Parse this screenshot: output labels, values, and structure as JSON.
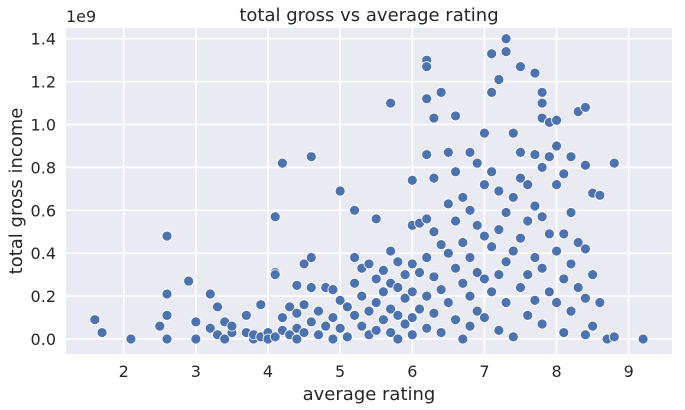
{
  "chart_data": {
    "type": "scatter",
    "title": "total gross vs average rating",
    "xlabel": "average rating",
    "ylabel": "total gross income",
    "y_offset_label": "1e9",
    "xlim": [
      1.2,
      9.6
    ],
    "ylim": [
      -0.07,
      1.45
    ],
    "x_ticks": [
      2,
      3,
      4,
      5,
      6,
      7,
      8,
      9
    ],
    "y_ticks": [
      0.0,
      0.2,
      0.4,
      0.6,
      0.8,
      1.0,
      1.2,
      1.4
    ],
    "x_tick_labels": [
      "2",
      "3",
      "4",
      "5",
      "6",
      "7",
      "8",
      "9"
    ],
    "y_tick_labels": [
      "0.0",
      "0.2",
      "0.4",
      "0.6",
      "0.8",
      "1.0",
      "1.2",
      "1.4"
    ],
    "grid": true,
    "background_color": "#eaeaf2",
    "marker_color": "#4c72b0",
    "y_units": "1e9",
    "points": [
      [
        1.6,
        0.09
      ],
      [
        1.7,
        0.03
      ],
      [
        2.1,
        0.0
      ],
      [
        2.5,
        0.06
      ],
      [
        2.6,
        0.0
      ],
      [
        2.6,
        0.11
      ],
      [
        2.6,
        0.21
      ],
      [
        2.6,
        0.48
      ],
      [
        2.9,
        0.27
      ],
      [
        3.0,
        0.08
      ],
      [
        3.0,
        0.0
      ],
      [
        3.2,
        0.21
      ],
      [
        3.2,
        0.05
      ],
      [
        3.3,
        0.15
      ],
      [
        3.3,
        0.02
      ],
      [
        3.4,
        0.0
      ],
      [
        3.4,
        0.08
      ],
      [
        3.5,
        0.03
      ],
      [
        3.5,
        0.06
      ],
      [
        3.7,
        0.03
      ],
      [
        3.7,
        0.11
      ],
      [
        3.8,
        0.0
      ],
      [
        3.8,
        0.02
      ],
      [
        3.9,
        0.16
      ],
      [
        3.9,
        0.01
      ],
      [
        4.0,
        0.03
      ],
      [
        4.0,
        0.0
      ],
      [
        4.1,
        0.57
      ],
      [
        4.1,
        0.31
      ],
      [
        4.1,
        0.01
      ],
      [
        4.1,
        0.3
      ],
      [
        4.2,
        0.82
      ],
      [
        4.2,
        0.04
      ],
      [
        4.2,
        0.1
      ],
      [
        4.3,
        0.15
      ],
      [
        4.3,
        0.02
      ],
      [
        4.4,
        0.25
      ],
      [
        4.4,
        0.05
      ],
      [
        4.4,
        0.12
      ],
      [
        4.4,
        0.0
      ],
      [
        4.5,
        0.35
      ],
      [
        4.5,
        0.16
      ],
      [
        4.5,
        0.03
      ],
      [
        4.6,
        0.85
      ],
      [
        4.6,
        0.38
      ],
      [
        4.6,
        0.24
      ],
      [
        4.6,
        0.08
      ],
      [
        4.7,
        0.13
      ],
      [
        4.7,
        0.02
      ],
      [
        4.8,
        0.24
      ],
      [
        4.8,
        0.06
      ],
      [
        4.9,
        0.23
      ],
      [
        4.9,
        0.1
      ],
      [
        4.9,
        0.0
      ],
      [
        5.0,
        0.69
      ],
      [
        5.0,
        0.18
      ],
      [
        5.0,
        0.05
      ],
      [
        5.1,
        0.15
      ],
      [
        5.1,
        0.01
      ],
      [
        5.2,
        0.6
      ],
      [
        5.2,
        0.38
      ],
      [
        5.2,
        0.26
      ],
      [
        5.2,
        0.11
      ],
      [
        5.3,
        0.33
      ],
      [
        5.3,
        0.2
      ],
      [
        5.3,
        0.06
      ],
      [
        5.4,
        0.35
      ],
      [
        5.4,
        0.13
      ],
      [
        5.4,
        0.02
      ],
      [
        5.5,
        0.56
      ],
      [
        5.5,
        0.28
      ],
      [
        5.5,
        0.17
      ],
      [
        5.5,
        0.04
      ],
      [
        5.6,
        0.32
      ],
      [
        5.6,
        0.22
      ],
      [
        5.6,
        0.09
      ],
      [
        5.7,
        1.1
      ],
      [
        5.7,
        0.41
      ],
      [
        5.7,
        0.26
      ],
      [
        5.7,
        0.14
      ],
      [
        5.7,
        0.03
      ],
      [
        5.8,
        0.36
      ],
      [
        5.8,
        0.24
      ],
      [
        5.8,
        0.11
      ],
      [
        5.8,
        0.0
      ],
      [
        5.9,
        0.3
      ],
      [
        5.9,
        0.19
      ],
      [
        5.9,
        0.07
      ],
      [
        6.0,
        0.74
      ],
      [
        6.0,
        0.53
      ],
      [
        6.0,
        0.35
      ],
      [
        6.0,
        0.22
      ],
      [
        6.0,
        0.1
      ],
      [
        6.0,
        0.02
      ],
      [
        6.1,
        0.54
      ],
      [
        6.1,
        0.31
      ],
      [
        6.1,
        0.14
      ],
      [
        6.2,
        1.3
      ],
      [
        6.2,
        1.27
      ],
      [
        6.2,
        1.12
      ],
      [
        6.2,
        0.86
      ],
      [
        6.2,
        0.56
      ],
      [
        6.2,
        0.38
      ],
      [
        6.2,
        0.2
      ],
      [
        6.2,
        0.05
      ],
      [
        6.3,
        1.03
      ],
      [
        6.3,
        0.75
      ],
      [
        6.3,
        0.5
      ],
      [
        6.3,
        0.29
      ],
      [
        6.3,
        0.12
      ],
      [
        6.4,
        1.15
      ],
      [
        6.4,
        0.44
      ],
      [
        6.4,
        0.23
      ],
      [
        6.4,
        0.03
      ],
      [
        6.5,
        0.87
      ],
      [
        6.5,
        0.63
      ],
      [
        6.5,
        0.4
      ],
      [
        6.5,
        0.17
      ],
      [
        6.6,
        1.04
      ],
      [
        6.6,
        0.78
      ],
      [
        6.6,
        0.55
      ],
      [
        6.6,
        0.33
      ],
      [
        6.6,
        0.09
      ],
      [
        6.7,
        0.66
      ],
      [
        6.7,
        0.45
      ],
      [
        6.7,
        0.26
      ],
      [
        6.7,
        0.0
      ],
      [
        6.8,
        0.87
      ],
      [
        6.8,
        0.6
      ],
      [
        6.8,
        0.38
      ],
      [
        6.8,
        0.2
      ],
      [
        6.8,
        0.06
      ],
      [
        6.9,
        0.82
      ],
      [
        6.9,
        0.53
      ],
      [
        6.9,
        0.31
      ],
      [
        6.9,
        0.13
      ],
      [
        7.0,
        0.96
      ],
      [
        7.0,
        0.72
      ],
      [
        7.0,
        0.48
      ],
      [
        7.0,
        0.28
      ],
      [
        7.0,
        0.1
      ],
      [
        7.1,
        1.33
      ],
      [
        7.1,
        1.15
      ],
      [
        7.1,
        0.78
      ],
      [
        7.1,
        0.43
      ],
      [
        7.1,
        0.22
      ],
      [
        7.2,
        1.21
      ],
      [
        7.2,
        0.69
      ],
      [
        7.2,
        0.51
      ],
      [
        7.2,
        0.3
      ],
      [
        7.2,
        0.04
      ],
      [
        7.3,
        1.4
      ],
      [
        7.3,
        1.34
      ],
      [
        7.3,
        0.59
      ],
      [
        7.3,
        0.36
      ],
      [
        7.3,
        0.17
      ],
      [
        7.4,
        0.96
      ],
      [
        7.4,
        0.66
      ],
      [
        7.4,
        0.41
      ],
      [
        7.4,
        0.01
      ],
      [
        7.5,
        1.27
      ],
      [
        7.5,
        0.87
      ],
      [
        7.5,
        0.75
      ],
      [
        7.5,
        0.47
      ],
      [
        7.5,
        0.24
      ],
      [
        7.6,
        0.72
      ],
      [
        7.6,
        0.55
      ],
      [
        7.6,
        0.3
      ],
      [
        7.6,
        0.11
      ],
      [
        7.7,
        1.24
      ],
      [
        7.7,
        0.86
      ],
      [
        7.7,
        0.62
      ],
      [
        7.7,
        0.38
      ],
      [
        7.7,
        0.18
      ],
      [
        7.8,
        1.15
      ],
      [
        7.8,
        1.1
      ],
      [
        7.8,
        1.03
      ],
      [
        7.8,
        0.8
      ],
      [
        7.8,
        0.57
      ],
      [
        7.8,
        0.33
      ],
      [
        7.8,
        0.07
      ],
      [
        7.9,
        1.01
      ],
      [
        7.9,
        0.85
      ],
      [
        7.9,
        0.49
      ],
      [
        7.9,
        0.22
      ],
      [
        8.0,
        1.02
      ],
      [
        8.0,
        0.9
      ],
      [
        8.0,
        0.72
      ],
      [
        8.0,
        0.41
      ],
      [
        8.0,
        0.17
      ],
      [
        8.1,
        0.77
      ],
      [
        8.1,
        0.49
      ],
      [
        8.1,
        0.28
      ],
      [
        8.1,
        0.03
      ],
      [
        8.2,
        0.85
      ],
      [
        8.2,
        0.59
      ],
      [
        8.2,
        0.35
      ],
      [
        8.2,
        0.13
      ],
      [
        8.3,
        1.06
      ],
      [
        8.3,
        0.45
      ],
      [
        8.3,
        0.24
      ],
      [
        8.4,
        1.08
      ],
      [
        8.4,
        0.81
      ],
      [
        8.4,
        0.42
      ],
      [
        8.4,
        0.19
      ],
      [
        8.4,
        0.02
      ],
      [
        8.5,
        0.68
      ],
      [
        8.5,
        0.3
      ],
      [
        8.5,
        0.06
      ],
      [
        8.6,
        0.67
      ],
      [
        8.6,
        0.17
      ],
      [
        8.7,
        0.0
      ],
      [
        8.8,
        0.82
      ],
      [
        8.8,
        0.01
      ],
      [
        9.2,
        0.0
      ]
    ]
  }
}
